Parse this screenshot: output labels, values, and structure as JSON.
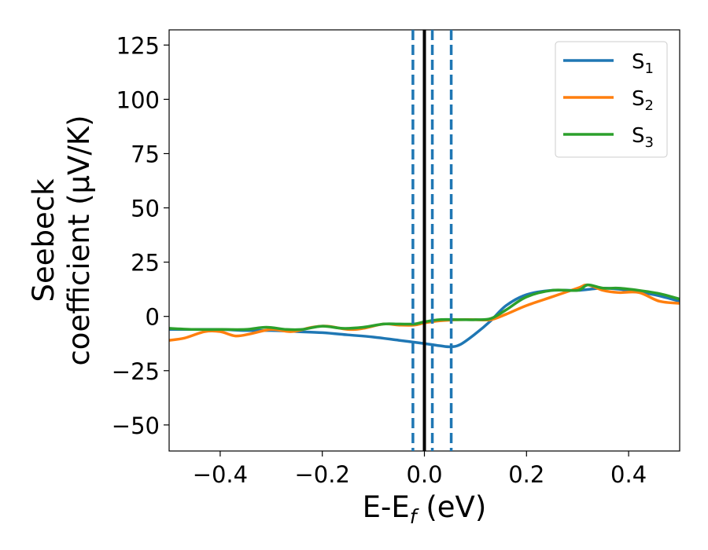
{
  "chart_data": {
    "type": "line",
    "title": "",
    "xlabel": "E-E",
    "xlabel_sub": "f",
    "xlabel_unit": " (eV)",
    "ylabel_line1": "Seebeck",
    "ylabel_line2": "coefficient  (μV/K)",
    "xlim": [
      -0.5,
      0.5
    ],
    "ylim": [
      -62,
      132
    ],
    "xticks": [
      -0.4,
      -0.2,
      0.0,
      0.2,
      0.4
    ],
    "xtick_labels": [
      "−0.4",
      "−0.2",
      "0.0",
      "0.2",
      "0.4"
    ],
    "yticks": [
      -50,
      -25,
      0,
      25,
      50,
      75,
      100,
      125
    ],
    "ytick_labels": [
      "−50",
      "−25",
      "0",
      "25",
      "50",
      "75",
      "100",
      "125"
    ],
    "grid": false,
    "legend_position": "top-right",
    "vertical_lines": [
      {
        "x": 0.0,
        "style": "solid",
        "color": "#000000"
      },
      {
        "x": -0.0225,
        "style": "dashed",
        "color": "#1f77b4"
      },
      {
        "x": 0.0155,
        "style": "dashed",
        "color": "#1f77b4"
      },
      {
        "x": 0.0525,
        "style": "dashed",
        "color": "#1f77b4"
      }
    ],
    "series": [
      {
        "name": "S",
        "subscript": "1",
        "color": "#1f77b4",
        "x": [
          -0.5,
          -0.45,
          -0.4,
          -0.35,
          -0.3,
          -0.25,
          -0.2,
          -0.15,
          -0.1,
          -0.05,
          0.0,
          0.03,
          0.05,
          0.07,
          0.1,
          0.13,
          0.16,
          0.2,
          0.25,
          0.3,
          0.35,
          0.4,
          0.45,
          0.5
        ],
        "y": [
          -6,
          -6,
          -6,
          -6.5,
          -6.5,
          -7,
          -7.5,
          -8.5,
          -9.5,
          -11,
          -12.5,
          -13.5,
          -14,
          -13,
          -8,
          -2,
          5,
          10,
          12,
          12,
          13,
          12,
          10,
          7
        ]
      },
      {
        "name": "S",
        "subscript": "2",
        "color": "#ff7f0e",
        "x": [
          -0.5,
          -0.47,
          -0.43,
          -0.4,
          -0.37,
          -0.34,
          -0.3,
          -0.26,
          -0.22,
          -0.19,
          -0.15,
          -0.12,
          -0.08,
          -0.05,
          -0.02,
          0.0,
          0.03,
          0.07,
          0.1,
          0.13,
          0.16,
          0.2,
          0.25,
          0.3,
          0.32,
          0.35,
          0.38,
          0.42,
          0.46,
          0.5
        ],
        "y": [
          -11,
          -10,
          -7,
          -7,
          -9,
          -8,
          -6,
          -7,
          -5,
          -4.5,
          -6,
          -5.5,
          -3.5,
          -4,
          -4,
          -3,
          -2,
          -1.5,
          -1.5,
          -1.5,
          1,
          5,
          9,
          13,
          14.5,
          12,
          11,
          11,
          7,
          6
        ]
      },
      {
        "name": "S",
        "subscript": "3",
        "color": "#2ca02c",
        "x": [
          -0.5,
          -0.45,
          -0.4,
          -0.35,
          -0.31,
          -0.27,
          -0.24,
          -0.2,
          -0.16,
          -0.12,
          -0.08,
          -0.05,
          -0.02,
          0.0,
          0.03,
          0.07,
          0.1,
          0.13,
          0.16,
          0.2,
          0.25,
          0.3,
          0.32,
          0.35,
          0.38,
          0.42,
          0.46,
          0.5
        ],
        "y": [
          -5.5,
          -6,
          -6,
          -6,
          -5,
          -6,
          -6,
          -4.5,
          -5.5,
          -5,
          -3.5,
          -3.5,
          -3.5,
          -2.5,
          -1.5,
          -1.5,
          -1.5,
          -1,
          3,
          9,
          12,
          12,
          14.5,
          13,
          13,
          12,
          10.5,
          8
        ]
      }
    ]
  }
}
